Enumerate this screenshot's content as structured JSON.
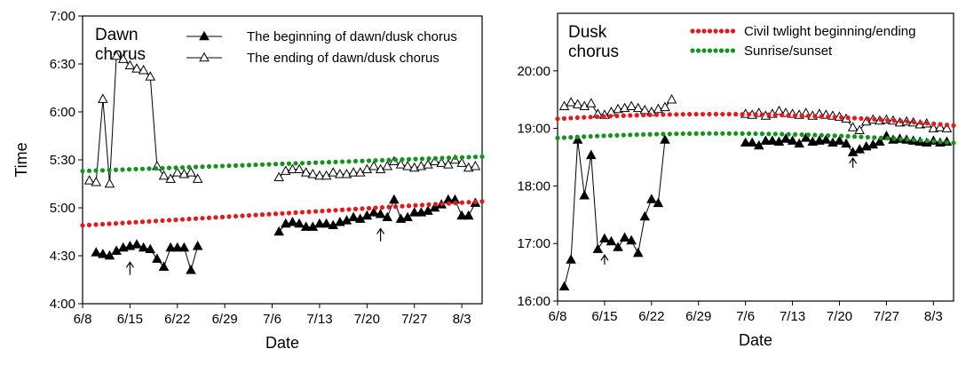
{
  "colors": {
    "axis": "#000000",
    "civil_twilight": "#e8171c",
    "sunrise_sunset": "#12941f",
    "begin_marker": "#000000",
    "end_marker": "#ffffff"
  },
  "chart_data": [
    {
      "type": "scatter",
      "title": "",
      "panel_label": "Dawn\nchorus",
      "xlabel": "Date",
      "ylabel": "Time",
      "x_units": "day of year (Jun 8 = 0)",
      "xlim": [
        0,
        59
      ],
      "ylim": [
        240,
        420
      ],
      "x_ticks": [
        {
          "x": 0,
          "label": "6/8"
        },
        {
          "x": 7,
          "label": "6/15"
        },
        {
          "x": 14,
          "label": "6/22"
        },
        {
          "x": 21,
          "label": "6/29"
        },
        {
          "x": 28,
          "label": "7/6"
        },
        {
          "x": 35,
          "label": "7/13"
        },
        {
          "x": 42,
          "label": "7/20"
        },
        {
          "x": 49,
          "label": "7/27"
        },
        {
          "x": 56,
          "label": "8/3"
        }
      ],
      "y_ticks": [
        {
          "y": 240,
          "label": "4:00"
        },
        {
          "y": 270,
          "label": "4:30"
        },
        {
          "y": 300,
          "label": "5:00"
        },
        {
          "y": 330,
          "label": "5:30"
        },
        {
          "y": 360,
          "label": "6:00"
        },
        {
          "y": 390,
          "label": "6:30"
        },
        {
          "y": 420,
          "label": "7:00"
        }
      ],
      "legend": [
        {
          "label": "The beginning of dawn/dusk chorus",
          "marker": "filled-triangle"
        },
        {
          "label": "The ending of dawn/dusk chorus",
          "marker": "open-triangle"
        }
      ],
      "legend_position": "top-right",
      "series": [
        {
          "name": "The beginning of dawn/dusk chorus",
          "marker": "filled-triangle",
          "segments": [
            [
              [
                2,
                272
              ],
              [
                3,
                271
              ],
              [
                4,
                270
              ],
              [
                5,
                273
              ],
              [
                6,
                275
              ],
              [
                7,
                276
              ],
              [
                8,
                277
              ],
              [
                9,
                275
              ],
              [
                10,
                274
              ],
              [
                11,
                268
              ],
              [
                12,
                263
              ],
              [
                13,
                275
              ],
              [
                14,
                275
              ],
              [
                15,
                275
              ],
              [
                16,
                261
              ],
              [
                17,
                276
              ]
            ],
            [
              [
                29,
                285
              ],
              [
                30,
                290
              ],
              [
                31,
                291
              ],
              [
                32,
                290
              ],
              [
                33,
                288
              ],
              [
                34,
                288
              ],
              [
                35,
                290
              ],
              [
                36,
                290
              ],
              [
                37,
                289
              ],
              [
                38,
                291
              ],
              [
                39,
                292
              ],
              [
                40,
                294
              ],
              [
                41,
                293
              ],
              [
                42,
                295
              ],
              [
                43,
                297
              ],
              [
                44,
                296
              ],
              [
                45,
                294
              ],
              [
                46,
                305
              ],
              [
                47,
                293
              ],
              [
                48,
                294
              ],
              [
                49,
                297
              ],
              [
                50,
                297
              ],
              [
                51,
                298
              ],
              [
                52,
                300
              ],
              [
                53,
                302
              ],
              [
                54,
                305
              ],
              [
                55,
                305
              ],
              [
                56,
                295
              ],
              [
                57,
                295
              ],
              [
                58,
                303
              ]
            ]
          ]
        },
        {
          "name": "The ending of dawn/dusk chorus",
          "marker": "open-triangle",
          "segments": [
            [
              [
                1,
                317
              ],
              [
                2,
                316
              ],
              [
                3,
                368
              ],
              [
                4,
                315
              ],
              [
                5,
                395
              ],
              [
                6,
                393
              ],
              [
                7,
                389
              ],
              [
                8,
                387
              ],
              [
                9,
                386
              ],
              [
                10,
                382
              ],
              [
                11,
                326
              ],
              [
                12,
                320
              ],
              [
                13,
                318
              ],
              [
                14,
                322
              ],
              [
                15,
                321
              ],
              [
                16,
                322
              ],
              [
                17,
                318
              ]
            ],
            [
              [
                29,
                319
              ],
              [
                30,
                323
              ],
              [
                31,
                324
              ],
              [
                32,
                324
              ],
              [
                33,
                322
              ],
              [
                34,
                321
              ],
              [
                35,
                320
              ],
              [
                36,
                320
              ],
              [
                37,
                322
              ],
              [
                38,
                321
              ],
              [
                39,
                321
              ],
              [
                40,
                322
              ],
              [
                41,
                322
              ],
              [
                42,
                324
              ],
              [
                43,
                326
              ],
              [
                44,
                324
              ],
              [
                45,
                326
              ],
              [
                46,
                329
              ],
              [
                47,
                327
              ],
              [
                48,
                326
              ],
              [
                49,
                325
              ],
              [
                50,
                326
              ],
              [
                51,
                327
              ],
              [
                52,
                329
              ],
              [
                53,
                328
              ],
              [
                54,
                327
              ],
              [
                55,
                330
              ],
              [
                56,
                328
              ],
              [
                57,
                325
              ],
              [
                58,
                326
              ]
            ]
          ]
        },
        {
          "name": "Civil twlight beginning/ending",
          "style": "dotted",
          "color": "#e8171c",
          "x": [
            0,
            59
          ],
          "y": [
            289,
            304
          ],
          "curvature": 0
        },
        {
          "name": "Sunrise/sunset",
          "style": "dotted",
          "color": "#12941f",
          "x": [
            0,
            59
          ],
          "y": [
            323,
            332
          ],
          "curvature": 0
        }
      ],
      "annotations": [
        {
          "type": "up-arrow",
          "x": 7,
          "y_tip": 266,
          "y_tail": 258
        },
        {
          "type": "up-arrow",
          "x": 44,
          "y_tip": 287,
          "y_tail": 279
        }
      ]
    },
    {
      "type": "scatter",
      "title": "",
      "panel_label": "Dusk\nchorus",
      "xlabel": "Date",
      "ylabel": "",
      "x_units": "day of year (Jun 8 = 0)",
      "xlim": [
        0,
        59
      ],
      "ylim": [
        960,
        1260
      ],
      "x_ticks": [
        {
          "x": 0,
          "label": "6/8"
        },
        {
          "x": 7,
          "label": "6/15"
        },
        {
          "x": 14,
          "label": "6/22"
        },
        {
          "x": 21,
          "label": "6/29"
        },
        {
          "x": 28,
          "label": "7/6"
        },
        {
          "x": 35,
          "label": "7/13"
        },
        {
          "x": 42,
          "label": "7/20"
        },
        {
          "x": 49,
          "label": "7/27"
        },
        {
          "x": 56,
          "label": "8/3"
        }
      ],
      "y_ticks": [
        {
          "y": 960,
          "label": "16:00"
        },
        {
          "y": 1020,
          "label": "17:00"
        },
        {
          "y": 1080,
          "label": "18:00"
        },
        {
          "y": 1140,
          "label": "19:00"
        },
        {
          "y": 1200,
          "label": "20:00"
        }
      ],
      "legend": [
        {
          "label": "Civil twlight beginning/ending",
          "style": "dotted",
          "color": "#e8171c"
        },
        {
          "label": "Sunrise/sunset",
          "style": "dotted",
          "color": "#12941f"
        }
      ],
      "legend_position": "top-right",
      "series": [
        {
          "name": "The beginning of dawn/dusk chorus",
          "marker": "filled-triangle",
          "segments": [
            [
              [
                1,
                975
              ],
              [
                2,
                1003
              ],
              [
                3,
                1128
              ],
              [
                4,
                1070
              ],
              [
                5,
                1112
              ],
              [
                6,
                1014
              ],
              [
                7,
                1025
              ],
              [
                8,
                1022
              ],
              [
                9,
                1016
              ],
              [
                10,
                1026
              ],
              [
                11,
                1023
              ],
              [
                12,
                1010
              ],
              [
                13,
                1048
              ],
              [
                14,
                1066
              ],
              [
                15,
                1062
              ],
              [
                16,
                1128
              ]
            ],
            [
              [
                28,
                1125
              ],
              [
                29,
                1125
              ],
              [
                30,
                1122
              ],
              [
                31,
                1127
              ],
              [
                32,
                1127
              ],
              [
                33,
                1126
              ],
              [
                34,
                1129
              ],
              [
                35,
                1127
              ],
              [
                36,
                1124
              ],
              [
                37,
                1130
              ],
              [
                38,
                1126
              ],
              [
                39,
                1127
              ],
              [
                40,
                1128
              ],
              [
                41,
                1125
              ],
              [
                42,
                1127
              ],
              [
                43,
                1124
              ],
              [
                44,
                1115
              ],
              [
                45,
                1118
              ],
              [
                46,
                1121
              ],
              [
                47,
                1123
              ],
              [
                48,
                1126
              ],
              [
                49,
                1132
              ],
              [
                50,
                1128
              ],
              [
                51,
                1129
              ],
              [
                52,
                1128
              ],
              [
                53,
                1127
              ],
              [
                54,
                1126
              ],
              [
                55,
                1125
              ],
              [
                56,
                1127
              ],
              [
                57,
                1125
              ],
              [
                58,
                1126
              ]
            ]
          ]
        },
        {
          "name": "The ending of dawn/dusk chorus",
          "marker": "open-triangle",
          "segments": [
            [
              [
                1,
                1163
              ],
              [
                2,
                1167
              ],
              [
                3,
                1165
              ],
              [
                4,
                1163
              ],
              [
                5,
                1166
              ],
              [
                6,
                1155
              ],
              [
                7,
                1154
              ],
              [
                8,
                1157
              ],
              [
                9,
                1160
              ],
              [
                10,
                1161
              ],
              [
                11,
                1163
              ],
              [
                12,
                1161
              ],
              [
                13,
                1159
              ],
              [
                14,
                1157
              ],
              [
                15,
                1160
              ],
              [
                16,
                1162
              ],
              [
                17,
                1170
              ]
            ],
            [
              [
                28,
                1155
              ],
              [
                29,
                1154
              ],
              [
                30,
                1156
              ],
              [
                31,
                1153
              ],
              [
                32,
                1155
              ],
              [
                33,
                1158
              ],
              [
                34,
                1156
              ],
              [
                35,
                1155
              ],
              [
                36,
                1154
              ],
              [
                37,
                1156
              ],
              [
                38,
                1153
              ],
              [
                39,
                1155
              ],
              [
                40,
                1154
              ],
              [
                41,
                1153
              ],
              [
                42,
                1152
              ],
              [
                43,
                1150
              ],
              [
                44,
                1141
              ],
              [
                45,
                1138
              ],
              [
                46,
                1147
              ],
              [
                47,
                1149
              ],
              [
                48,
                1148
              ],
              [
                49,
                1149
              ],
              [
                50,
                1148
              ],
              [
                51,
                1146
              ],
              [
                52,
                1147
              ],
              [
                53,
                1146
              ],
              [
                54,
                1144
              ],
              [
                55,
                1145
              ],
              [
                56,
                1140
              ],
              [
                57,
                1141
              ],
              [
                58,
                1140
              ]
            ]
          ]
        },
        {
          "name": "Civil twlight beginning/ending",
          "style": "dotted",
          "color": "#e8171c",
          "x": [
            0,
            59
          ],
          "y": [
            1150,
            1143
          ],
          "curvature": 8
        },
        {
          "name": "Sunrise/sunset",
          "style": "dotted",
          "color": "#12941f",
          "x": [
            0,
            59
          ],
          "y": [
            1130,
            1125
          ],
          "curvature": 7
        }
      ],
      "annotations": [
        {
          "type": "up-arrow",
          "x": 7,
          "y_tip": 1008,
          "y_tail": 998
        },
        {
          "type": "up-arrow",
          "x": 44,
          "y_tip": 1109,
          "y_tail": 1099
        }
      ]
    }
  ]
}
